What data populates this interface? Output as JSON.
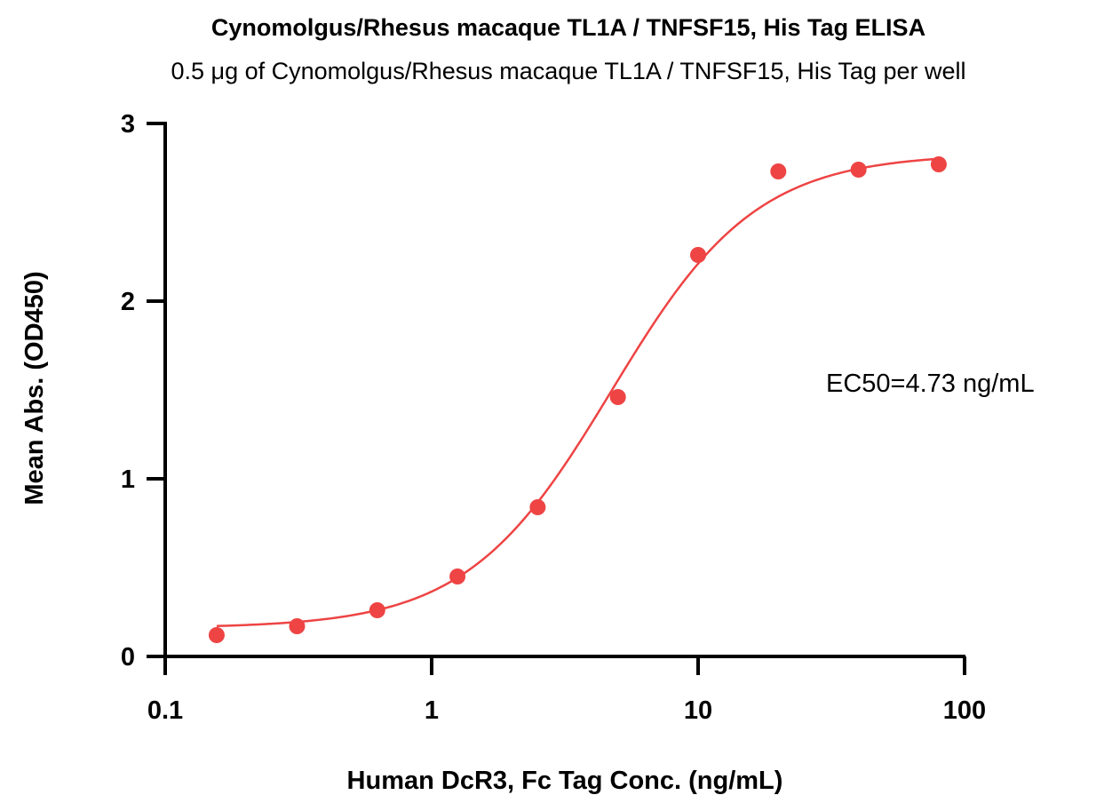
{
  "chart_data": {
    "type": "scatter",
    "title": "Cynomolgus/Rhesus macaque TL1A / TNFSF15, His Tag  ELISA",
    "subtitle": "0.5 μg of Cynomolgus/Rhesus macaque TL1A / TNFSF15, His Tag  per well",
    "xlabel": "Human DcR3, Fc Tag Conc. (ng/mL)",
    "ylabel": "Mean Abs. (OD450)",
    "x_scale": "log",
    "xlim": [
      0.1,
      100
    ],
    "ylim": [
      0,
      3
    ],
    "x_ticks": [
      {
        "value": 0.1,
        "label": "0.1"
      },
      {
        "value": 1,
        "label": "1"
      },
      {
        "value": 10,
        "label": "10"
      },
      {
        "value": 100,
        "label": "100"
      }
    ],
    "y_ticks": [
      {
        "value": 0,
        "label": "0"
      },
      {
        "value": 1,
        "label": "1"
      },
      {
        "value": 2,
        "label": "2"
      },
      {
        "value": 3,
        "label": "3"
      }
    ],
    "grid": false,
    "series": [
      {
        "color": "#ee4444",
        "x": [
          0.156,
          0.3125,
          0.625,
          1.25,
          2.5,
          5,
          10,
          20,
          40,
          80
        ],
        "y": [
          0.12,
          0.17,
          0.26,
          0.45,
          0.84,
          1.46,
          2.26,
          2.73,
          2.74,
          2.77
        ]
      }
    ],
    "fit_curve": {
      "model": "4PL",
      "bottom": 0.16,
      "top": 2.83,
      "ec50": 4.73,
      "hill": 1.6,
      "x_range": [
        0.156,
        80
      ]
    },
    "annotations": [
      {
        "text": "EC50=4.73 ng/mL"
      }
    ]
  }
}
